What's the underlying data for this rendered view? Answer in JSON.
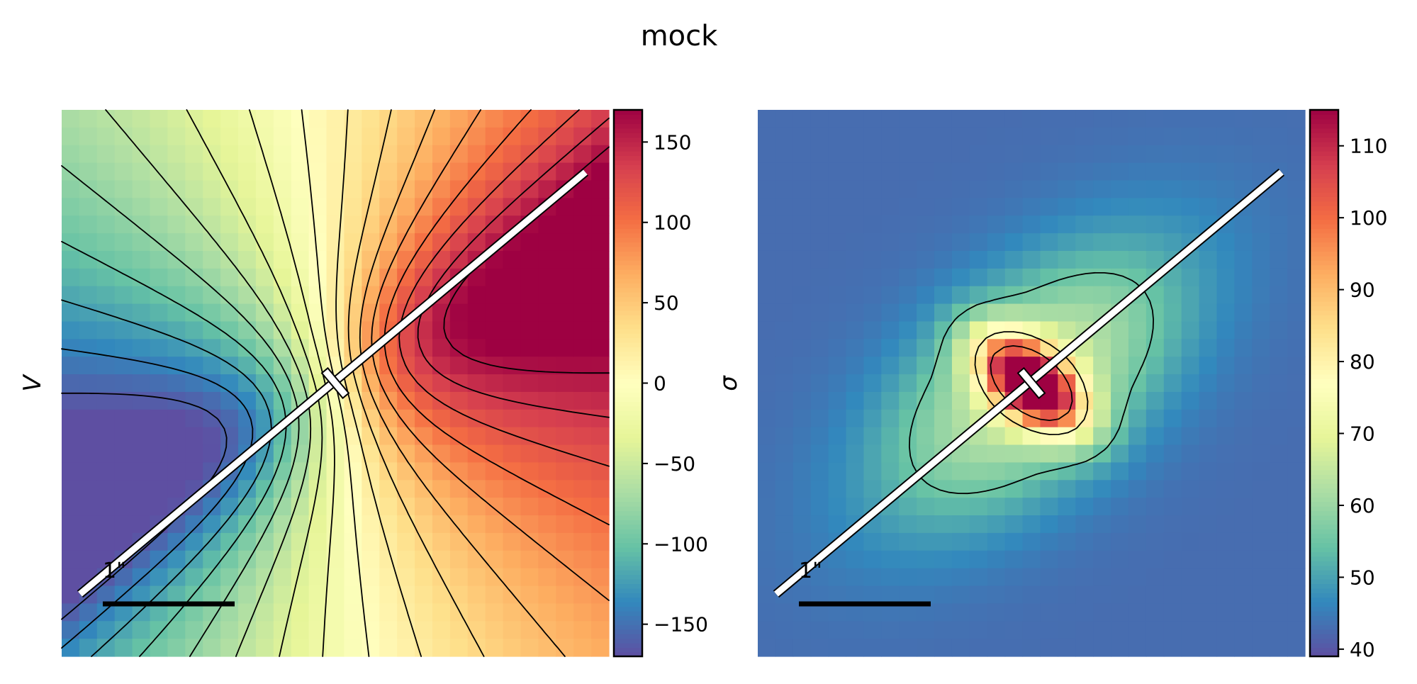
{
  "figure": {
    "title": "mock"
  },
  "chart_data": [
    {
      "type": "heatmap",
      "name": "velocity-map",
      "ylabel": "V",
      "colormap": "Spectral_r",
      "grid": false,
      "colorbar": {
        "range": [
          -170,
          170
        ],
        "ticks": [
          -150,
          -100,
          -50,
          0,
          50,
          100,
          150
        ],
        "tick_labels": [
          "−150",
          "−100",
          "−50",
          "0",
          "50",
          "100",
          "150"
        ]
      },
      "scale_bar": {
        "label": "1\"",
        "length_arcsec": 1
      },
      "field_half_width_arcsec": 2.1,
      "position_angle_deg": 40,
      "max_velocity": 165,
      "contours": "velocity isocontours every 20",
      "slit": "white diagonal slit with center marker"
    },
    {
      "type": "heatmap",
      "name": "dispersion-map",
      "ylabel": "σ",
      "colormap": "Spectral_r",
      "grid": false,
      "colorbar": {
        "range": [
          39,
          115
        ],
        "ticks": [
          40,
          50,
          60,
          70,
          80,
          90,
          100,
          110
        ],
        "tick_labels": [
          "40",
          "50",
          "60",
          "70",
          "80",
          "90",
          "100",
          "110"
        ]
      },
      "scale_bar": {
        "label": "1\"",
        "length_arcsec": 1
      },
      "field_half_width_arcsec": 2.1,
      "position_angle_deg": 40,
      "background_sigma": 43,
      "peak_sigma": 115,
      "contour_levels": [
        55,
        80,
        100
      ],
      "slit": "white diagonal slit with center marker"
    }
  ]
}
